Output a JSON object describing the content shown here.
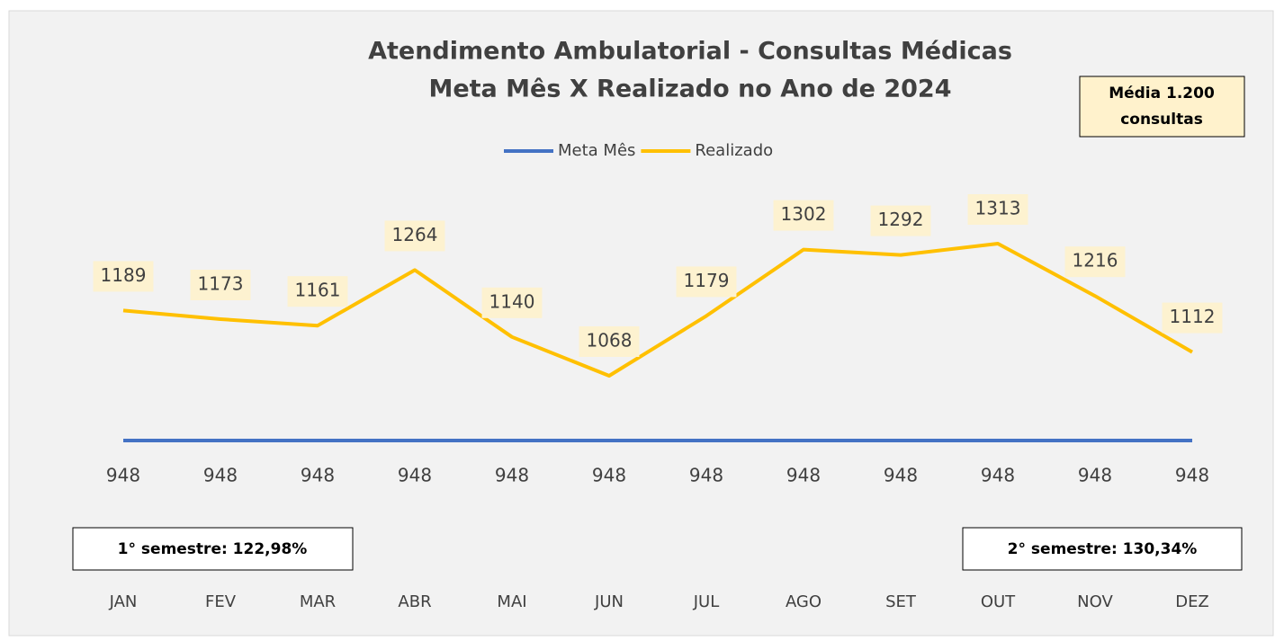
{
  "chart_data": {
    "type": "line",
    "title": "Atendimento Ambulatorial - Consultas Médicas",
    "subtitle": "Meta Mês X Realizado no Ano de 2024",
    "categories": [
      "JAN",
      "FEV",
      "MAR",
      "ABR",
      "MAI",
      "JUN",
      "JUL",
      "AGO",
      "SET",
      "OUT",
      "NOV",
      "DEZ"
    ],
    "series": [
      {
        "name": "Meta Mês",
        "color": "#4472c4",
        "values": [
          948,
          948,
          948,
          948,
          948,
          948,
          948,
          948,
          948,
          948,
          948,
          948
        ]
      },
      {
        "name": "Realizado",
        "color": "#ffc000",
        "values": [
          1189,
          1173,
          1161,
          1264,
          1140,
          1068,
          1179,
          1302,
          1292,
          1313,
          1216,
          1112
        ]
      }
    ],
    "legend": "top",
    "annotations": {
      "media": [
        "Média 1.200",
        "consultas"
      ],
      "semestre1": "1° semestre: 122,98%",
      "semestre2": "2° semestre: 130,34%"
    }
  }
}
